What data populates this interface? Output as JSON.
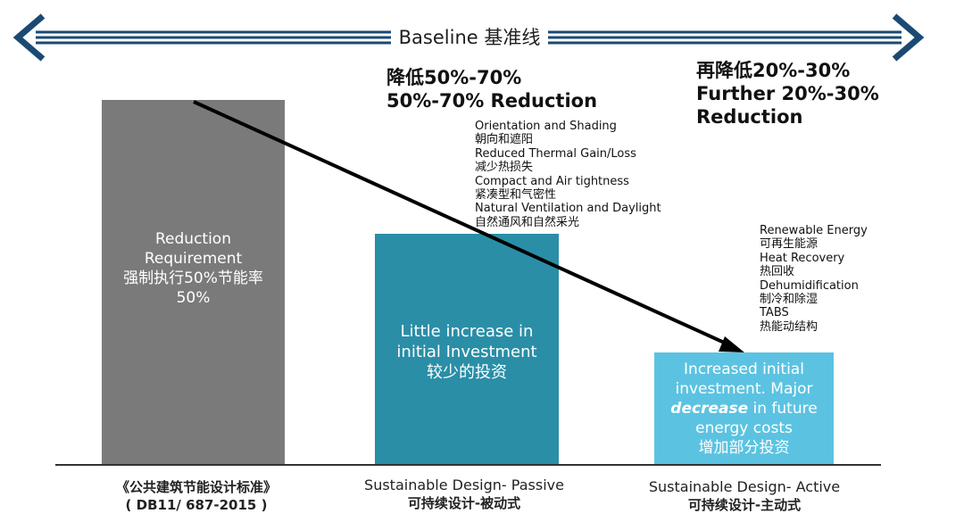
{
  "baseline": {
    "label": "Baseline 基准线",
    "color": "#1a4a73"
  },
  "headlines": {
    "passive": {
      "line1": "降低50%-70%",
      "line2": "50%-70% Reduction"
    },
    "active": {
      "line1": "再降低20%-30%",
      "line2": "Further 20%-30%",
      "line3": "Reduction"
    }
  },
  "bars": {
    "baseline": {
      "color": "#7a7a7a",
      "lines": [
        "Reduction",
        "Requirement",
        "强制执行50%节能率",
        "50%"
      ]
    },
    "passive": {
      "color": "#2a8ea7",
      "lines": [
        "Little increase in",
        "initial Investment",
        "较少的投资"
      ]
    },
    "active": {
      "color": "#5bc3e1",
      "line1": "Increased initial",
      "line2": "investment. Major",
      "emphasis": "decrease",
      "line3_rest": " in future",
      "line4": "energy costs",
      "line5": "增加部分投资"
    }
  },
  "measures": {
    "passive": [
      "Orientation and Shading",
      "朝向和遮阳",
      "Reduced Thermal Gain/Loss",
      "减少热损失",
      "Compact and Air tightness",
      "紧凑型和气密性",
      "Natural Ventilation and Daylight",
      "自然通风和自然采光"
    ],
    "active": [
      "Renewable Energy",
      "可再生能源",
      "Heat Recovery",
      "热回收",
      "Dehumidification",
      "制冷和除湿",
      "TABS",
      "热能动结构"
    ]
  },
  "categories": {
    "baseline": {
      "line1": "《公共建筑节能设计标准》",
      "line2": "( DB11/ 687-2015 )"
    },
    "passive": {
      "line1": "Sustainable Design- Passive",
      "line2": "可持续设计-被动式"
    },
    "active": {
      "line1": "Sustainable Design- Active",
      "line2": "可持续设计-主动式"
    }
  }
}
